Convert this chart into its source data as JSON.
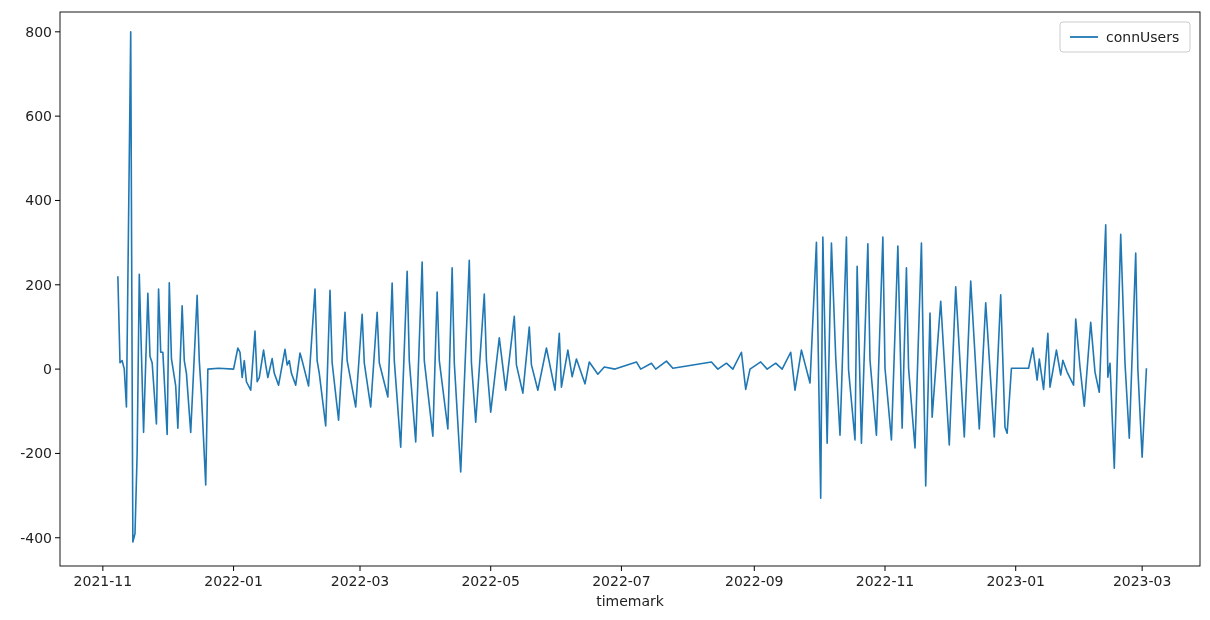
{
  "chart_data": {
    "type": "line",
    "xlabel": "timemark",
    "legend": "top right",
    "xlim": [
      "2021-10-12",
      "2023-03-28"
    ],
    "xticks": [
      "2021-11",
      "2022-01",
      "2022-03",
      "2022-05",
      "2022-07",
      "2022-09",
      "2022-11",
      "2023-01",
      "2023-03"
    ],
    "ylim": [
      -467,
      847
    ],
    "yticks": [
      -400,
      -200,
      0,
      200,
      400,
      600,
      800
    ],
    "series": [
      {
        "name": "connUsers",
        "color": "#1f77b4",
        "x": [
          "2021-11-08",
          "2021-11-09",
          "2021-11-10",
          "2021-11-11",
          "2021-11-12",
          "2021-11-14",
          "2021-11-15",
          "2021-11-16",
          "2021-11-17",
          "2021-11-18",
          "2021-11-20",
          "2021-11-22",
          "2021-11-23",
          "2021-11-24",
          "2021-11-26",
          "2021-11-27",
          "2021-11-28",
          "2021-11-29",
          "2021-12-01",
          "2021-12-02",
          "2021-12-03",
          "2021-12-05",
          "2021-12-06",
          "2021-12-08",
          "2021-12-09",
          "2021-12-10",
          "2021-12-12",
          "2021-12-15",
          "2021-12-16",
          "2021-12-17",
          "2021-12-19",
          "2021-12-20",
          "2021-12-25",
          "2022-01-01",
          "2022-01-03",
          "2022-01-04",
          "2022-01-05",
          "2022-01-06",
          "2022-01-07",
          "2022-01-09",
          "2022-01-11",
          "2022-01-12",
          "2022-01-13",
          "2022-01-15",
          "2022-01-16",
          "2022-01-17",
          "2022-01-19",
          "2022-01-20",
          "2022-01-22",
          "2022-01-25",
          "2022-01-26",
          "2022-01-27",
          "2022-01-28",
          "2022-01-30",
          "2022-02-01",
          "2022-02-02",
          "2022-02-05",
          "2022-02-08",
          "2022-02-09",
          "2022-02-10",
          "2022-02-13",
          "2022-02-15",
          "2022-02-16",
          "2022-02-19",
          "2022-02-22",
          "2022-02-23",
          "2022-02-27",
          "2022-03-02",
          "2022-03-03",
          "2022-03-06",
          "2022-03-09",
          "2022-03-10",
          "2022-03-14",
          "2022-03-16",
          "2022-03-17",
          "2022-03-20",
          "2022-03-23",
          "2022-03-24",
          "2022-03-27",
          "2022-03-30",
          "2022-03-31",
          "2022-04-04",
          "2022-04-06",
          "2022-04-07",
          "2022-04-11",
          "2022-04-13",
          "2022-04-14",
          "2022-04-17",
          "2022-04-21",
          "2022-04-22",
          "2022-04-24",
          "2022-04-28",
          "2022-04-29",
          "2022-05-01",
          "2022-05-05",
          "2022-05-08",
          "2022-05-12",
          "2022-05-13",
          "2022-05-16",
          "2022-05-19",
          "2022-05-20",
          "2022-05-23",
          "2022-05-27",
          "2022-05-31",
          "2022-06-02",
          "2022-06-03",
          "2022-06-06",
          "2022-06-08",
          "2022-06-10",
          "2022-06-14",
          "2022-06-16",
          "2022-06-20",
          "2022-06-23",
          "2022-06-28",
          "2022-07-08",
          "2022-07-10",
          "2022-07-15",
          "2022-07-17",
          "2022-07-22",
          "2022-07-25",
          "2022-08-12",
          "2022-08-15",
          "2022-08-19",
          "2022-08-22",
          "2022-08-26",
          "2022-08-28",
          "2022-08-30",
          "2022-09-04",
          "2022-09-07",
          "2022-09-11",
          "2022-09-14",
          "2022-09-18",
          "2022-09-20",
          "2022-09-23",
          "2022-09-27",
          "2022-09-30",
          "2022-10-02",
          "2022-10-03",
          "2022-10-05",
          "2022-10-07",
          "2022-10-09",
          "2022-10-11",
          "2022-10-14",
          "2022-10-15",
          "2022-10-18",
          "2022-10-19",
          "2022-10-21",
          "2022-10-24",
          "2022-10-25",
          "2022-10-28",
          "2022-10-31",
          "2022-11-01",
          "2022-11-04",
          "2022-11-07",
          "2022-11-09",
          "2022-11-11",
          "2022-11-12",
          "2022-11-15",
          "2022-11-18",
          "2022-11-19",
          "2022-11-20",
          "2022-11-22",
          "2022-11-23",
          "2022-11-27",
          "2022-12-01",
          "2022-12-04",
          "2022-12-08",
          "2022-12-11",
          "2022-12-15",
          "2022-12-18",
          "2022-12-22",
          "2022-12-25",
          "2022-12-27",
          "2022-12-28",
          "2022-12-30",
          "2023-01-07",
          "2023-01-09",
          "2023-01-11",
          "2023-01-12",
          "2023-01-14",
          "2023-01-16",
          "2023-01-17",
          "2023-01-20",
          "2023-01-22",
          "2023-01-23",
          "2023-01-25",
          "2023-01-28",
          "2023-01-29",
          "2023-01-31",
          "2023-02-02",
          "2023-02-05",
          "2023-02-07",
          "2023-02-09",
          "2023-02-12",
          "2023-02-13",
          "2023-02-14",
          "2023-02-16",
          "2023-02-19",
          "2023-02-21",
          "2023-02-23",
          "2023-02-26",
          "2023-02-27",
          "2023-03-01",
          "2023-03-03"
        ],
        "values": [
          220,
          15,
          20,
          0,
          -90,
          800,
          -410,
          -390,
          -200,
          225,
          -150,
          180,
          30,
          15,
          -130,
          190,
          40,
          40,
          -155,
          205,
          25,
          -40,
          -140,
          150,
          20,
          -10,
          -150,
          175,
          20,
          -60,
          -275,
          0,
          2,
          0,
          50,
          40,
          -20,
          20,
          -30,
          -50,
          90,
          -30,
          -20,
          45,
          10,
          -20,
          25,
          -10,
          -38,
          47,
          10,
          20,
          -10,
          -38,
          38,
          20,
          -40,
          190,
          20,
          -10,
          -135,
          187,
          15,
          -121,
          135,
          20,
          -90,
          130,
          15,
          -90,
          135,
          15,
          -66,
          204,
          20,
          -185,
          232,
          20,
          -173,
          254,
          20,
          -159,
          183,
          20,
          -142,
          240,
          15,
          -244,
          258,
          15,
          -126,
          178,
          20,
          -102,
          74,
          -50,
          125,
          10,
          -57,
          100,
          10,
          -50,
          50,
          -50,
          85,
          -43,
          45,
          -18,
          24,
          -35,
          17,
          -12,
          5,
          0,
          17,
          0,
          14,
          0,
          19,
          2,
          17,
          0,
          14,
          0,
          40,
          -48,
          0,
          17,
          0,
          14,
          0,
          40,
          -50,
          45,
          -33,
          301,
          -306,
          313,
          -176,
          299,
          28,
          -157,
          313,
          -2,
          -168,
          244,
          -176,
          297,
          21,
          -157,
          313,
          2,
          -168,
          292,
          -140,
          240,
          2,
          -187,
          299,
          -5,
          -277,
          133,
          -114,
          161,
          -180,
          195,
          -161,
          209,
          -142,
          157,
          -161,
          176,
          -138,
          -152,
          2,
          2,
          50,
          -26,
          24,
          -48,
          85,
          -43,
          45,
          -14,
          21,
          -7,
          -38,
          119,
          5,
          -88,
          111,
          -7,
          -55,
          342,
          -19,
          14,
          -235,
          320,
          14,
          -164,
          275,
          0,
          -209,
          2
        ]
      }
    ]
  }
}
